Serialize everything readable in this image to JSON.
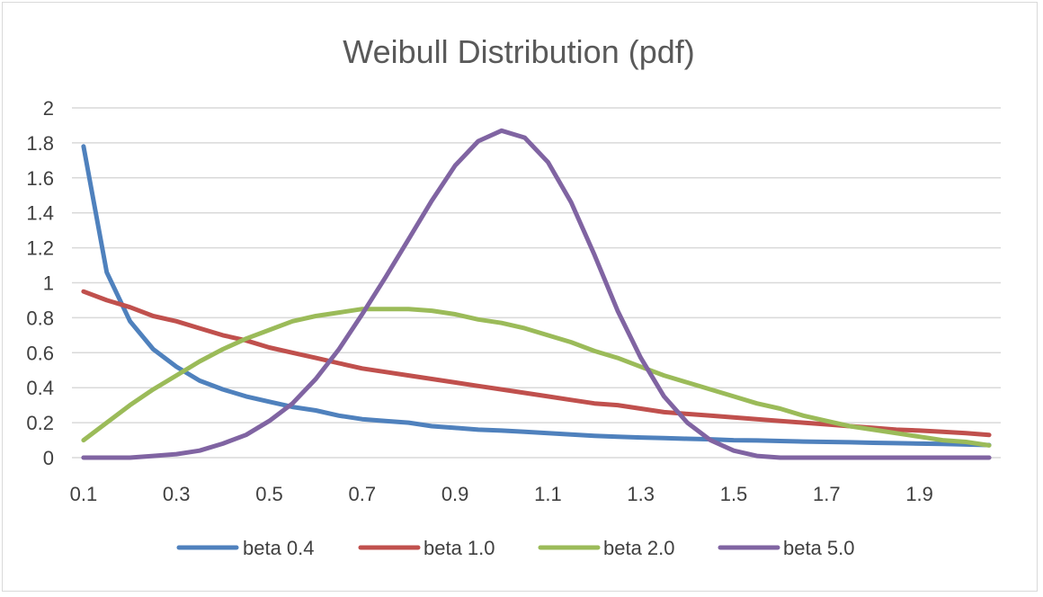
{
  "chart_data": {
    "type": "line",
    "title": "Weibull Distribution (pdf)",
    "xlabel": "",
    "ylabel": "",
    "ylim": [
      0,
      2
    ],
    "yticks": [
      "0",
      "0.2",
      "0.4",
      "0.6",
      "0.8",
      "1",
      "1.2",
      "1.4",
      "1.6",
      "1.8",
      "2"
    ],
    "xticks": [
      "0.1",
      "0.3",
      "0.5",
      "0.7",
      "0.9",
      "1.1",
      "1.3",
      "1.5",
      "1.7",
      "1.9"
    ],
    "x": [
      0.1,
      0.15,
      0.2,
      0.25,
      0.3,
      0.35,
      0.4,
      0.45,
      0.5,
      0.55,
      0.6,
      0.65,
      0.7,
      0.75,
      0.8,
      0.85,
      0.9,
      0.95,
      1.0,
      1.05,
      1.1,
      1.15,
      1.2,
      1.25,
      1.3,
      1.35,
      1.4,
      1.45,
      1.5,
      1.55,
      1.6,
      1.65,
      1.7,
      1.75,
      1.8,
      1.85,
      1.9,
      1.95,
      2.0,
      2.05
    ],
    "grid": true,
    "legend_position": "bottom",
    "series": [
      {
        "name": "beta 0.4",
        "color": "#4f81bd",
        "values": [
          1.78,
          1.06,
          0.78,
          0.62,
          0.52,
          0.44,
          0.39,
          0.35,
          0.32,
          0.29,
          0.27,
          0.24,
          0.22,
          0.21,
          0.2,
          0.18,
          0.17,
          0.16,
          0.155,
          0.148,
          0.14,
          0.132,
          0.125,
          0.12,
          0.115,
          0.112,
          0.108,
          0.105,
          0.1,
          0.098,
          0.095,
          0.092,
          0.09,
          0.088,
          0.085,
          0.083,
          0.08,
          0.078,
          0.075,
          0.072
        ]
      },
      {
        "name": "beta 1.0",
        "color": "#c0504d",
        "values": [
          0.95,
          0.9,
          0.86,
          0.81,
          0.78,
          0.74,
          0.7,
          0.67,
          0.63,
          0.6,
          0.57,
          0.54,
          0.51,
          0.49,
          0.47,
          0.45,
          0.43,
          0.41,
          0.39,
          0.37,
          0.35,
          0.33,
          0.31,
          0.3,
          0.28,
          0.26,
          0.25,
          0.24,
          0.23,
          0.22,
          0.21,
          0.2,
          0.19,
          0.18,
          0.17,
          0.16,
          0.155,
          0.148,
          0.14,
          0.13
        ]
      },
      {
        "name": "beta 2.0",
        "color": "#9bbb59",
        "values": [
          0.1,
          0.2,
          0.3,
          0.39,
          0.47,
          0.55,
          0.62,
          0.68,
          0.73,
          0.78,
          0.81,
          0.83,
          0.85,
          0.85,
          0.85,
          0.84,
          0.82,
          0.79,
          0.77,
          0.74,
          0.7,
          0.66,
          0.61,
          0.57,
          0.52,
          0.47,
          0.43,
          0.39,
          0.35,
          0.31,
          0.28,
          0.24,
          0.21,
          0.18,
          0.16,
          0.14,
          0.12,
          0.1,
          0.09,
          0.07
        ]
      },
      {
        "name": "beta 5.0",
        "color": "#8064a2",
        "values": [
          0,
          0,
          0,
          0.01,
          0.02,
          0.04,
          0.08,
          0.13,
          0.21,
          0.31,
          0.45,
          0.62,
          0.82,
          1.03,
          1.25,
          1.47,
          1.67,
          1.81,
          1.87,
          1.83,
          1.69,
          1.46,
          1.16,
          0.84,
          0.57,
          0.35,
          0.2,
          0.1,
          0.04,
          0.01,
          0,
          0,
          0,
          0,
          0,
          0,
          0,
          0,
          0,
          0
        ]
      }
    ]
  }
}
